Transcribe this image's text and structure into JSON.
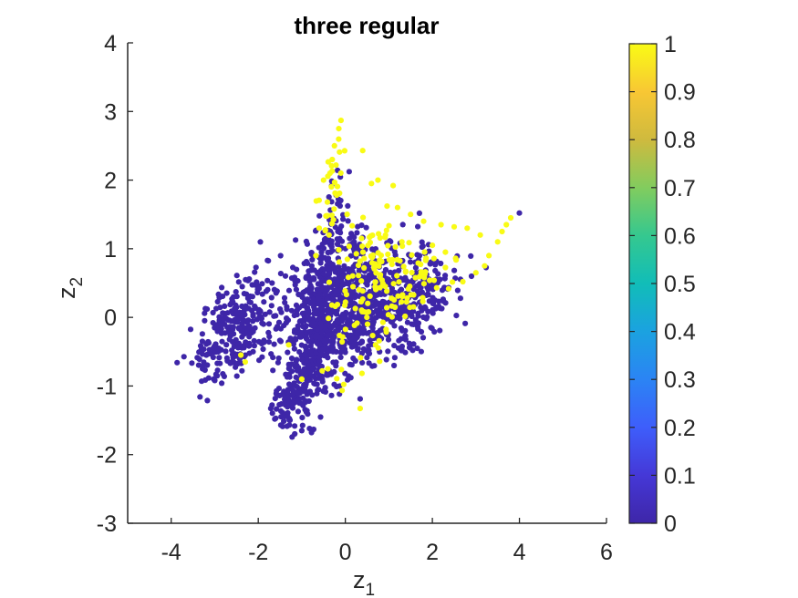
{
  "chart_data": {
    "type": "scatter",
    "title": "three regular",
    "xlabel": {
      "base": "z",
      "sub": "1"
    },
    "ylabel": {
      "base": "z",
      "sub": "2"
    },
    "xlim": [
      -5,
      6
    ],
    "ylim": [
      -3,
      4
    ],
    "xticks": [
      -4,
      -2,
      0,
      2,
      4,
      6
    ],
    "yticks": [
      -3,
      -2,
      -1,
      0,
      1,
      2,
      3,
      4
    ],
    "grid": false,
    "colorbar": {
      "colormap": "parula",
      "limits": [
        0,
        1
      ],
      "ticks": [
        "0",
        "0.1",
        "0.2",
        "0.3",
        "0.4",
        "0.5",
        "0.6",
        "0.7",
        "0.8",
        "0.9",
        "1"
      ],
      "colors": {
        "low": "#3E26A8",
        "mid": "#11BDB8",
        "high": "#F9FB15"
      }
    },
    "series": [
      {
        "value": 0,
        "color": "#3E26A8",
        "clusters": [
          {
            "center": [
              -2.4,
              -0.1
            ],
            "spread": [
              0.45,
              0.35
            ],
            "count": 260
          },
          {
            "center": [
              -0.8,
              -0.5
            ],
            "spread": [
              0.35,
              0.45
            ],
            "count": 260
          },
          {
            "center": [
              -0.4,
              0.1
            ],
            "spread": [
              0.5,
              0.45
            ],
            "count": 320
          },
          {
            "center": [
              0.3,
              0.15
            ],
            "spread": [
              0.55,
              0.4
            ],
            "count": 300
          },
          {
            "center": [
              1.1,
              0.15
            ],
            "spread": [
              0.5,
              0.35
            ],
            "count": 220
          },
          {
            "center": [
              1.8,
              0.2
            ],
            "spread": [
              0.4,
              0.3
            ],
            "count": 120
          },
          {
            "center": [
              -1.2,
              -1.2
            ],
            "spread": [
              0.25,
              0.18
            ],
            "count": 70
          },
          {
            "center": [
              -0.3,
              0.9
            ],
            "spread": [
              0.35,
              0.3
            ],
            "count": 90
          },
          {
            "center": [
              -0.2,
              1.6
            ],
            "spread": [
              0.2,
              0.25
            ],
            "count": 25
          },
          {
            "center": [
              -3.1,
              -0.6
            ],
            "spread": [
              0.2,
              0.2
            ],
            "count": 30
          }
        ],
        "points": [
          [
            4.0,
            1.52
          ],
          [
            -3.3,
            -0.93
          ],
          [
            -3.0,
            -0.92
          ],
          [
            -1.6,
            -1.47
          ],
          [
            -1.0,
            -1.65
          ],
          [
            2.9,
            0.6
          ]
        ]
      },
      {
        "value": 1,
        "color": "#F9FB15",
        "clusters": [
          {
            "center": [
              0.6,
              0.75
            ],
            "spread": [
              0.4,
              0.3
            ],
            "count": 70
          },
          {
            "center": [
              1.5,
              0.5
            ],
            "spread": [
              0.5,
              0.25
            ],
            "count": 60
          },
          {
            "center": [
              -0.4,
              1.7
            ],
            "spread": [
              0.2,
              0.35
            ],
            "count": 30
          },
          {
            "center": [
              0.3,
              -0.2
            ],
            "spread": [
              0.6,
              0.4
            ],
            "count": 35
          }
        ],
        "points": [
          [
            -0.1,
            2.87
          ],
          [
            -0.15,
            2.75
          ],
          [
            -0.25,
            2.5
          ],
          [
            -0.3,
            2.3
          ],
          [
            -0.35,
            2.1
          ],
          [
            -0.5,
            2.0
          ],
          [
            0.4,
            2.43
          ],
          [
            0.6,
            1.95
          ],
          [
            0.75,
            2.0
          ],
          [
            1.1,
            1.92
          ],
          [
            1.2,
            1.6
          ],
          [
            1.5,
            1.5
          ],
          [
            1.8,
            1.4
          ],
          [
            2.2,
            1.35
          ],
          [
            2.5,
            1.32
          ],
          [
            2.8,
            1.3
          ],
          [
            3.1,
            1.2
          ],
          [
            3.6,
            1.25
          ],
          [
            3.7,
            1.35
          ],
          [
            3.8,
            1.45
          ],
          [
            3.5,
            1.1
          ],
          [
            3.3,
            0.9
          ],
          [
            3.2,
            0.75
          ],
          [
            3.0,
            0.65
          ],
          [
            2.7,
            0.52
          ],
          [
            1.3,
            1.1
          ],
          [
            2.0,
            1.05
          ],
          [
            2.3,
            0.95
          ],
          [
            -2.4,
            -0.55
          ],
          [
            -2.3,
            -0.65
          ],
          [
            -1.3,
            -0.4
          ],
          [
            -1.0,
            -0.9
          ],
          [
            -0.4,
            -0.75
          ],
          [
            -0.6,
            1.3
          ]
        ]
      }
    ]
  }
}
